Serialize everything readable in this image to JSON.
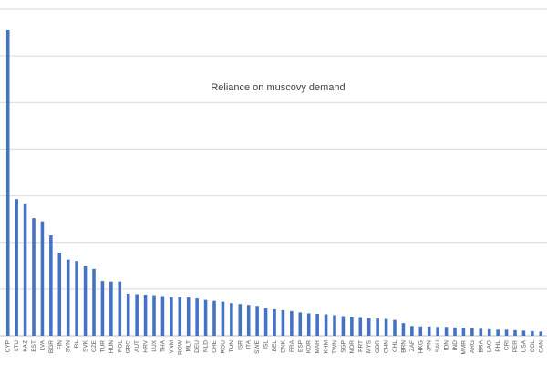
{
  "chart_data": {
    "type": "bar",
    "title": "Reliance on muscovy demand",
    "xlabel": "",
    "ylabel": "",
    "ylim": [
      0,
      7
    ],
    "grid": true,
    "legend": "none",
    "colors": {
      "bar": "#4472C4",
      "grid": "#d9d9d9",
      "axis": "#bfbfbf"
    },
    "categories": [
      "CYP",
      "LTU",
      "KAZ",
      "EST",
      "LVA",
      "BGR",
      "FIN",
      "SVN",
      "IRL",
      "SVK",
      "CZE",
      "TUR",
      "HUN",
      "POL",
      "GRC",
      "AUT",
      "HRV",
      "LUX",
      "THA",
      "VNM",
      "ROW",
      "MLT",
      "DEU",
      "NLD",
      "CHE",
      "ROU",
      "TUN",
      "ISR",
      "ITA",
      "SWE",
      "ISL",
      "BEL",
      "DNK",
      "FRA",
      "ESP",
      "KOR",
      "MAR",
      "KHM",
      "TWN",
      "SGP",
      "NOR",
      "PRT",
      "MYS",
      "GBR",
      "CHN",
      "CHL",
      "BRN",
      "ZAF",
      "HKG",
      "JPN",
      "SAU",
      "IDN",
      "IND",
      "MMR",
      "ARG",
      "BRA",
      "LAO",
      "PHL",
      "CRI",
      "PER",
      "USA",
      "COL",
      "CAN"
    ],
    "values": [
      6.55,
      2.93,
      2.82,
      2.52,
      2.45,
      2.15,
      1.78,
      1.63,
      1.6,
      1.5,
      1.43,
      1.17,
      1.16,
      1.16,
      0.9,
      0.89,
      0.88,
      0.87,
      0.85,
      0.84,
      0.83,
      0.82,
      0.8,
      0.77,
      0.75,
      0.73,
      0.7,
      0.68,
      0.66,
      0.64,
      0.59,
      0.57,
      0.55,
      0.53,
      0.5,
      0.48,
      0.47,
      0.46,
      0.44,
      0.42,
      0.41,
      0.4,
      0.38,
      0.37,
      0.36,
      0.34,
      0.27,
      0.21,
      0.2,
      0.2,
      0.19,
      0.19,
      0.18,
      0.17,
      0.16,
      0.15,
      0.14,
      0.13,
      0.13,
      0.12,
      0.11,
      0.1,
      0.09
    ]
  }
}
